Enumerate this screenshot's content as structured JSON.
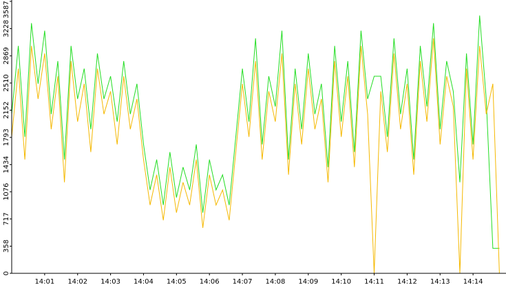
{
  "chart_data": {
    "type": "line",
    "x": [
      0,
      0.2,
      0.4,
      0.6,
      0.8,
      1,
      1.2,
      1.4,
      1.6,
      1.8,
      2,
      2.2,
      2.4,
      2.6,
      2.8,
      3,
      3.2,
      3.4,
      3.6,
      3.8,
      4,
      4.2,
      4.4,
      4.6,
      4.8,
      5,
      5.2,
      5.4,
      5.6,
      5.8,
      6,
      6.2,
      6.4,
      6.6,
      6.8,
      7,
      7.2,
      7.4,
      7.6,
      7.8,
      8,
      8.2,
      8.4,
      8.6,
      8.8,
      9,
      9.2,
      9.4,
      9.6,
      9.8,
      10,
      10.2,
      10.4,
      10.6,
      10.8,
      11,
      11.2,
      11.4,
      11.6,
      11.8,
      12,
      12.2,
      12.4,
      12.6,
      12.8,
      13,
      13.2,
      13.4,
      13.6,
      13.8,
      14,
      14.2,
      14.4,
      14.6,
      14.8
    ],
    "series": [
      {
        "color": "#22dd22",
        "values": [
          2100,
          3000,
          1800,
          3300,
          2500,
          3200,
          2100,
          2800,
          1500,
          3000,
          2300,
          2700,
          1900,
          2900,
          2300,
          2600,
          2000,
          2800,
          2100,
          2500,
          1700,
          1100,
          1500,
          900,
          1600,
          1000,
          1400,
          1100,
          1700,
          800,
          1500,
          1100,
          1300,
          900,
          1800,
          2700,
          2000,
          3100,
          1700,
          2600,
          2200,
          3200,
          1500,
          2700,
          1900,
          2900,
          2100,
          2500,
          1400,
          3000,
          2000,
          2800,
          1600,
          3200,
          2300,
          2600,
          2600,
          1800,
          3100,
          2100,
          2700,
          1500,
          3000,
          2200,
          3300,
          1900,
          2800,
          2400,
          1200,
          2900,
          1700,
          3400,
          2300,
          330,
          330
        ]
      },
      {
        "color": "#f5b800",
        "values": [
          1800,
          2700,
          1500,
          3000,
          2300,
          2900,
          1900,
          2600,
          1200,
          2800,
          2000,
          2500,
          1600,
          2700,
          2100,
          2400,
          1700,
          2600,
          1900,
          2300,
          1500,
          900,
          1300,
          700,
          1400,
          800,
          1200,
          900,
          1500,
          600,
          1300,
          900,
          1100,
          700,
          1600,
          2500,
          1800,
          2800,
          1500,
          2400,
          2000,
          2900,
          1300,
          2500,
          1700,
          2700,
          1900,
          2300,
          1200,
          2800,
          1800,
          2600,
          1400,
          3000,
          2100,
          0,
          2400,
          1600,
          2900,
          1900,
          2500,
          1300,
          2800,
          2000,
          3100,
          1700,
          2600,
          2200,
          0,
          2700,
          1500,
          3000,
          2100,
          2500,
          0
        ]
      }
    ],
    "xlim": [
      0,
      15
    ],
    "xticks": [
      {
        "value": 1,
        "label": "14:01"
      },
      {
        "value": 2,
        "label": "14:02"
      },
      {
        "value": 3,
        "label": "14:03"
      },
      {
        "value": 4,
        "label": "14:04"
      },
      {
        "value": 5,
        "label": "14:05"
      },
      {
        "value": 6,
        "label": "14:06"
      },
      {
        "value": 7,
        "label": "14:07"
      },
      {
        "value": 8,
        "label": "14:08"
      },
      {
        "value": 9,
        "label": "14:09"
      },
      {
        "value": 10,
        "label": "14:10"
      },
      {
        "value": 11,
        "label": "14:11"
      },
      {
        "value": 12,
        "label": "14:12"
      },
      {
        "value": 13,
        "label": "14:13"
      },
      {
        "value": 14,
        "label": "14:14"
      }
    ],
    "ylim": [
      0,
      3587
    ],
    "yticks": [
      0,
      358,
      717,
      1076,
      1434,
      1793,
      2152,
      2510,
      2869,
      3228,
      3587
    ]
  }
}
